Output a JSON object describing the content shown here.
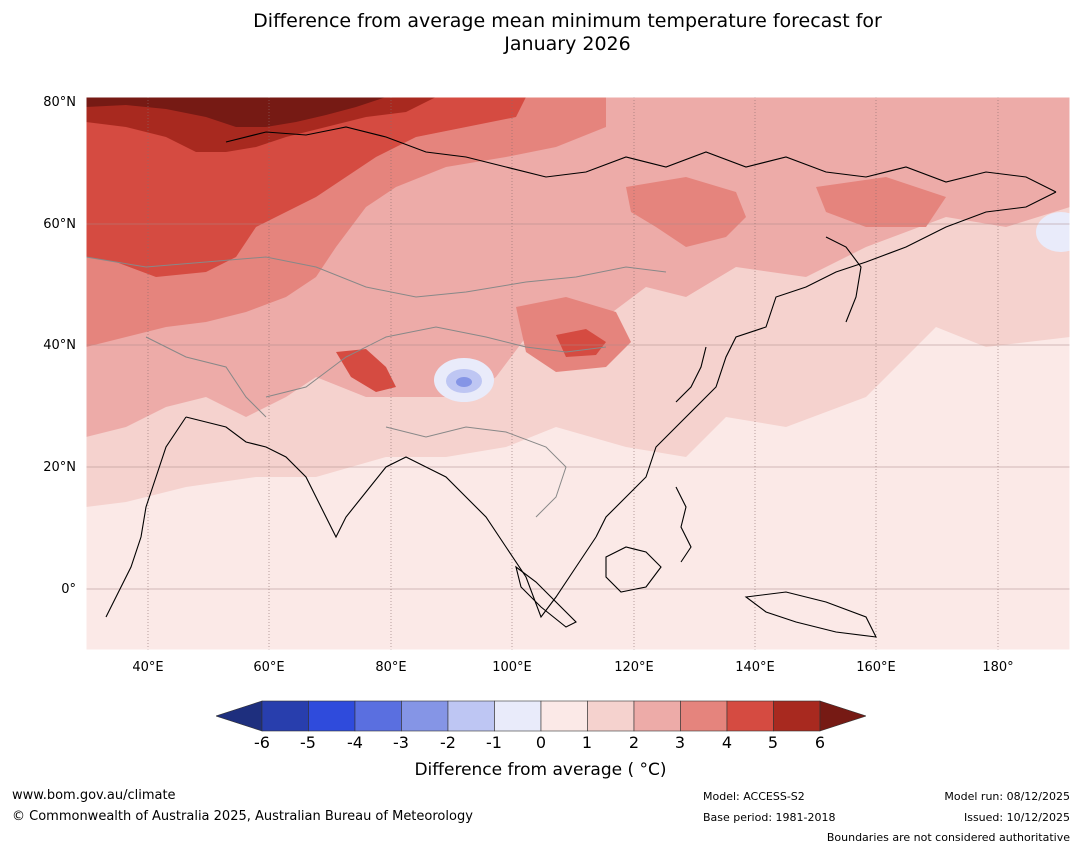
{
  "title": {
    "line1": "Difference from average mean minimum temperature forecast for",
    "line2": "January 2026"
  },
  "map": {
    "lat_labels": [
      "80°N",
      "60°N",
      "40°N",
      "20°N",
      "0°"
    ],
    "lon_labels": [
      "40°E",
      "60°E",
      "80°E",
      "100°E",
      "120°E",
      "140°E",
      "160°E",
      "180°"
    ],
    "field_colors": {
      "anom_0_1": "#fbe9e7",
      "anom_1_2": "#f5d2ce",
      "anom_2_3": "#edaba8",
      "anom_3_4": "#e5847d",
      "anom_4_5": "#d54b41",
      "anom_5_6": "#a8291f",
      "anom_gt6": "#761a14",
      "anom_m1_0": "#e9ebfa",
      "anom_m2_m1": "#bec6f3",
      "anom_m3_m2": "#8595e6"
    }
  },
  "colorbar": {
    "ticks": [
      "-6",
      "-5",
      "-4",
      "-3",
      "-2",
      "-1",
      "0",
      "1",
      "2",
      "3",
      "4",
      "5",
      "6"
    ],
    "colors": [
      "#1e2f7e",
      "#283ead",
      "#2f4bdc",
      "#5a6fe0",
      "#8595e6",
      "#bec6f3",
      "#e9ebfa",
      "#fbe9e7",
      "#f5d2ce",
      "#edaba8",
      "#e5847d",
      "#d54b41",
      "#a8291f",
      "#761a14"
    ],
    "label": "Difference from average ( °C)"
  },
  "footer": {
    "website": "www.bom.gov.au/climate",
    "copyright": "© Commonwealth of Australia 2025, Australian Bureau of Meteorology",
    "model": "Model: ACCESS-S2",
    "base_period": "Base period: 1981-2018",
    "model_run": "Model run: 08/12/2025",
    "issued": "Issued: 10/12/2025",
    "disclaimer": "Boundaries are not considered authoritative"
  }
}
